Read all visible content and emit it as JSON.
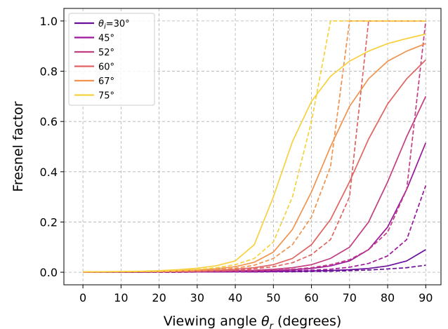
{
  "chart_data": {
    "type": "line",
    "xlabel_prefix": "Viewing angle ",
    "xlabel_symbol": "θ",
    "xlabel_sub": "r",
    "xlabel_suffix": " (degrees)",
    "ylabel": "Fresnel factor",
    "xlim": [
      -5,
      94
    ],
    "ylim": [
      -0.05,
      1.05
    ],
    "xticks": [
      0,
      10,
      20,
      30,
      40,
      50,
      60,
      70,
      80,
      90
    ],
    "yticks": [
      0.0,
      0.2,
      0.4,
      0.6,
      0.8,
      1.0
    ],
    "ytick_labels": [
      "0.0",
      "0.2",
      "0.4",
      "0.6",
      "0.8",
      "1.0"
    ],
    "grid": true,
    "legend_position": "top-left",
    "x": [
      0,
      5,
      10,
      15,
      20,
      25,
      30,
      35,
      40,
      45,
      50,
      55,
      60,
      65,
      70,
      75,
      80,
      85,
      90
    ],
    "series": [
      {
        "name": "θi=30°",
        "legend_label": "θi=30°",
        "color": "#6a0f9c",
        "solid": [
          0.0,
          0.0,
          0.0,
          0.0,
          0.001,
          0.001,
          0.001,
          0.001,
          0.002,
          0.002,
          0.003,
          0.004,
          0.005,
          0.007,
          0.01,
          0.015,
          0.025,
          0.045,
          0.09
        ],
        "dashed": [
          0.0,
          0.0,
          0.0,
          0.0,
          0.0,
          0.0,
          0.001,
          0.001,
          0.001,
          0.001,
          0.002,
          0.002,
          0.003,
          0.004,
          0.006,
          0.009,
          0.013,
          0.018,
          0.028
        ]
      },
      {
        "name": "45°",
        "legend_label": "45°",
        "color": "#9c179e",
        "solid": [
          0.0,
          0.0,
          0.001,
          0.001,
          0.001,
          0.002,
          0.002,
          0.003,
          0.004,
          0.005,
          0.007,
          0.01,
          0.015,
          0.025,
          0.045,
          0.09,
          0.18,
          0.33,
          0.515
        ],
        "dashed": [
          0.0,
          0.0,
          0.0,
          0.001,
          0.001,
          0.001,
          0.001,
          0.002,
          0.002,
          0.003,
          0.004,
          0.006,
          0.008,
          0.012,
          0.02,
          0.035,
          0.065,
          0.13,
          0.345
        ]
      },
      {
        "name": "52°",
        "legend_label": "52°",
        "color": "#c13e81",
        "solid": [
          0.0,
          0.001,
          0.001,
          0.001,
          0.002,
          0.002,
          0.003,
          0.004,
          0.006,
          0.008,
          0.012,
          0.018,
          0.03,
          0.055,
          0.1,
          0.2,
          0.36,
          0.54,
          0.7
        ],
        "dashed": [
          0.0,
          0.0,
          0.001,
          0.001,
          0.001,
          0.002,
          0.002,
          0.003,
          0.004,
          0.005,
          0.008,
          0.012,
          0.018,
          0.03,
          0.05,
          0.09,
          0.16,
          0.33,
          1.0
        ]
      },
      {
        "name": "60°",
        "legend_label": "60°",
        "color": "#df6461",
        "solid": [
          0.001,
          0.001,
          0.001,
          0.002,
          0.003,
          0.004,
          0.005,
          0.008,
          0.012,
          0.018,
          0.03,
          0.055,
          0.11,
          0.21,
          0.36,
          0.53,
          0.67,
          0.77,
          0.845
        ],
        "dashed": [
          0.0,
          0.001,
          0.001,
          0.001,
          0.002,
          0.003,
          0.004,
          0.006,
          0.009,
          0.014,
          0.022,
          0.038,
          0.07,
          0.13,
          0.3,
          1.0,
          1.0,
          1.0,
          1.0
        ]
      },
      {
        "name": "67°",
        "legend_label": "67°",
        "color": "#f0934f",
        "solid": [
          0.001,
          0.001,
          0.002,
          0.003,
          0.004,
          0.006,
          0.009,
          0.014,
          0.022,
          0.04,
          0.08,
          0.17,
          0.32,
          0.5,
          0.66,
          0.77,
          0.84,
          0.88,
          0.91
        ],
        "dashed": [
          0.001,
          0.001,
          0.001,
          0.002,
          0.003,
          0.004,
          0.006,
          0.01,
          0.016,
          0.028,
          0.055,
          0.11,
          0.22,
          0.42,
          1.0,
          1.0,
          1.0,
          1.0,
          1.0
        ]
      },
      {
        "name": "75°",
        "legend_label": "75°",
        "color": "#f7d13d",
        "solid": [
          0.001,
          0.002,
          0.003,
          0.004,
          0.006,
          0.01,
          0.016,
          0.026,
          0.045,
          0.11,
          0.3,
          0.52,
          0.68,
          0.78,
          0.84,
          0.88,
          0.91,
          0.93,
          0.948
        ],
        "dashed": [
          0.001,
          0.001,
          0.002,
          0.003,
          0.004,
          0.007,
          0.011,
          0.018,
          0.03,
          0.055,
          0.12,
          0.3,
          0.6,
          1.0,
          1.0,
          1.0,
          1.0,
          1.0,
          1.0
        ]
      }
    ]
  }
}
